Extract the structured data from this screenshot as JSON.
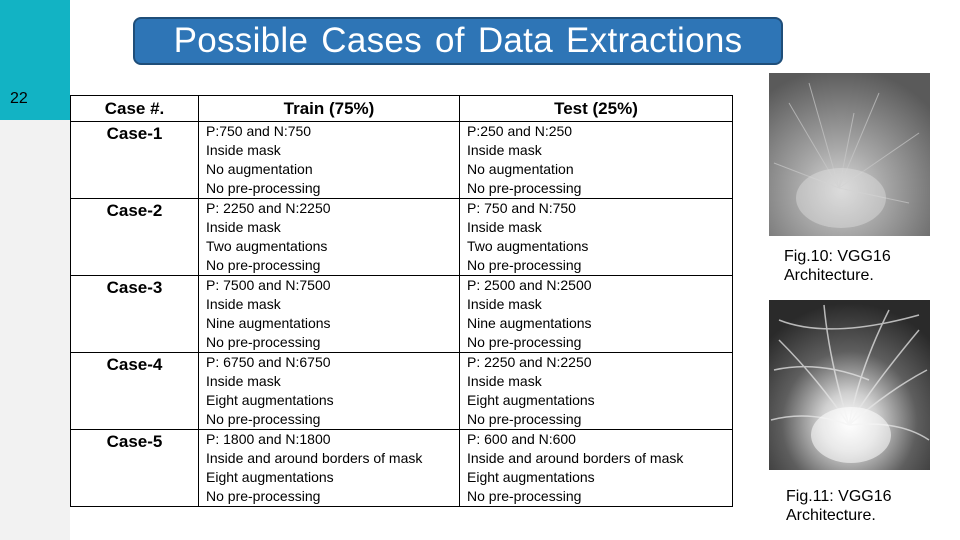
{
  "slide": {
    "number": "22",
    "title": "Possible Cases of Data Extractions"
  },
  "table": {
    "headers": {
      "case": "Case #.",
      "train": "Train (75%)",
      "test": "Test (25%)"
    },
    "rows": [
      {
        "case": "Case-1",
        "train": [
          "P:750 and N:750",
          "Inside mask",
          "No augmentation",
          "No pre-processing"
        ],
        "test": [
          "P:250 and N:250",
          "Inside mask",
          "No augmentation",
          "No pre-processing"
        ]
      },
      {
        "case": "Case-2",
        "train": [
          "P: 2250 and N:2250",
          "Inside mask",
          "Two augmentations",
          "No pre-processing"
        ],
        "test": [
          "P: 750 and N:750",
          "Inside mask",
          "Two augmentations",
          "No pre-processing"
        ]
      },
      {
        "case": "Case-3",
        "train": [
          "P: 7500 and N:7500",
          "Inside mask",
          "Nine augmentations",
          "No pre-processing"
        ],
        "test": [
          "P: 2500 and N:2500",
          "Inside mask",
          "Nine augmentations",
          "No pre-processing"
        ]
      },
      {
        "case": "Case-4",
        "train": [
          "P: 6750 and N:6750",
          "Inside mask",
          "Eight augmentations",
          "No pre-processing"
        ],
        "test": [
          "P: 2250 and N:2250",
          "Inside mask",
          "Eight augmentations",
          "No pre-processing"
        ]
      },
      {
        "case": "Case-5",
        "train": [
          "P: 1800 and N:1800",
          "Inside and around borders of mask",
          "Eight augmentations",
          "No pre-processing"
        ],
        "test": [
          "P: 600 and N:600",
          "Inside and around borders of mask",
          "Eight augmentations",
          "No pre-processing"
        ]
      }
    ]
  },
  "figures": [
    {
      "caption_line1": "Fig.10: VGG16",
      "caption_line2": "Architecture."
    },
    {
      "caption_line1": "Fig.11: VGG16",
      "caption_line2": "Architecture."
    }
  ],
  "colors": {
    "accent_teal": "#12b3c4",
    "title_fill": "#2e75b6",
    "title_border": "#1f4e79"
  }
}
